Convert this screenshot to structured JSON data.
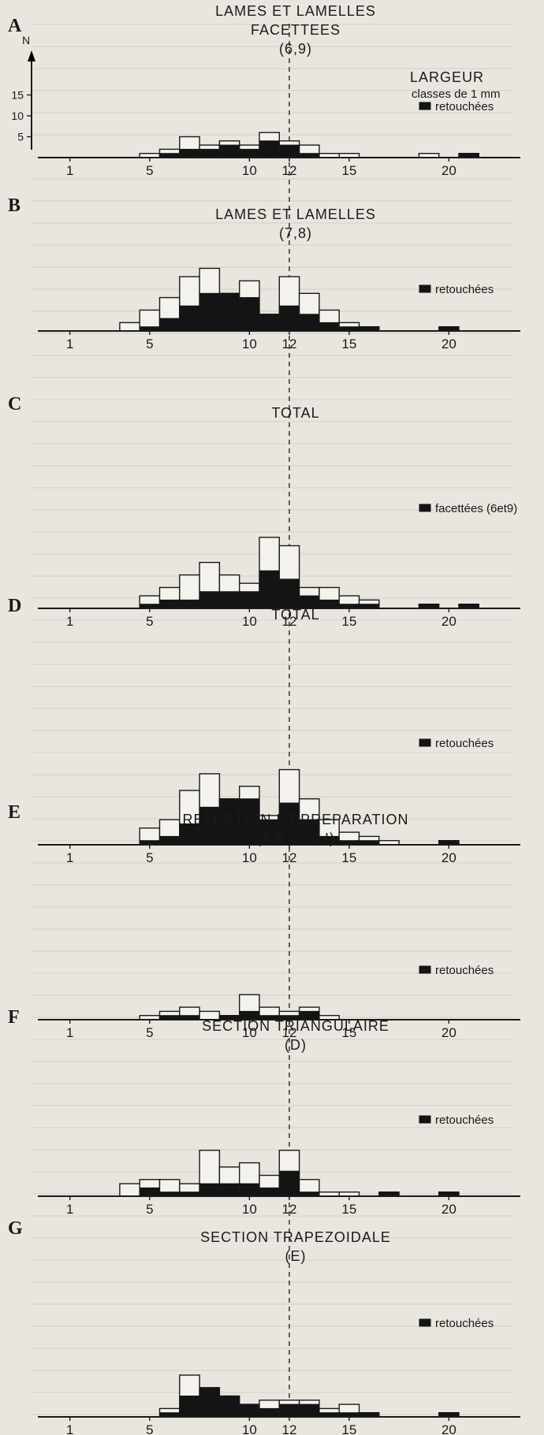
{
  "figure": {
    "y_axis_symbol": "N",
    "y_ticks": [
      "15",
      "10",
      "5"
    ],
    "x_tick_labels": [
      "1",
      "5",
      "10",
      "12",
      "15",
      "20"
    ],
    "top_right_label": [
      "LARGEUR",
      "classes de 1 mm"
    ],
    "reference_width_mm": 12
  },
  "chart_data": [
    {
      "type": "bar",
      "panel": "A",
      "title": [
        "LAMES ET LAMELLES",
        "FACETTEES",
        "(6,9)"
      ],
      "legend": "retouchées",
      "x": [
        5,
        6,
        7,
        8,
        9,
        10,
        11,
        12,
        13,
        14,
        15,
        16,
        17,
        18,
        19,
        20,
        21
      ],
      "total": [
        1,
        2,
        5,
        3,
        4,
        3,
        6,
        4,
        3,
        1,
        1,
        0,
        0,
        0,
        1,
        0,
        1
      ],
      "retouched": [
        0,
        1,
        2,
        2,
        3,
        2,
        4,
        3,
        1,
        0,
        0,
        0,
        0,
        0,
        0,
        0,
        1
      ]
    },
    {
      "type": "bar",
      "panel": "B",
      "title": [
        "LAMES ET LAMELLES",
        "(7,8)"
      ],
      "legend": "retouchées",
      "x": [
        4,
        5,
        6,
        7,
        8,
        9,
        10,
        11,
        12,
        13,
        14,
        15,
        16,
        17,
        18,
        19,
        20,
        21
      ],
      "total": [
        2,
        5,
        8,
        13,
        15,
        9,
        12,
        4,
        13,
        9,
        5,
        2,
        1,
        0,
        0,
        0,
        1,
        0
      ],
      "retouched": [
        0,
        1,
        3,
        6,
        9,
        9,
        8,
        4,
        6,
        4,
        2,
        1,
        1,
        0,
        0,
        0,
        1,
        0
      ]
    },
    {
      "type": "bar",
      "panel": "C",
      "title": [
        "TOTAL"
      ],
      "legend": "facettées (6et9)",
      "x": [
        5,
        6,
        7,
        8,
        9,
        10,
        11,
        12,
        13,
        14,
        15,
        16,
        17,
        18,
        19,
        20,
        21
      ],
      "total": [
        3,
        5,
        8,
        11,
        8,
        6,
        17,
        15,
        5,
        5,
        3,
        2,
        0,
        0,
        1,
        0,
        1
      ],
      "retouched": [
        1,
        2,
        2,
        4,
        4,
        4,
        9,
        7,
        3,
        2,
        1,
        1,
        0,
        0,
        1,
        0,
        1
      ]
    },
    {
      "type": "bar",
      "panel": "D",
      "title": [
        "TOTAL"
      ],
      "legend": "retouchées",
      "x": [
        5,
        6,
        7,
        8,
        9,
        10,
        11,
        12,
        13,
        14,
        15,
        16,
        17,
        18,
        19,
        20,
        21
      ],
      "total": [
        4,
        6,
        13,
        17,
        11,
        14,
        7,
        18,
        11,
        6,
        3,
        2,
        1,
        0,
        0,
        1,
        0
      ],
      "retouched": [
        1,
        2,
        5,
        9,
        11,
        11,
        6,
        10,
        6,
        2,
        1,
        1,
        0,
        0,
        0,
        1,
        0
      ]
    },
    {
      "type": "bar",
      "panel": "E",
      "title": [
        "REFECTION ET PREPARATION",
        "(A B C et I)"
      ],
      "legend": "retouchées",
      "x": [
        5,
        6,
        7,
        8,
        9,
        10,
        11,
        12,
        13,
        14,
        15,
        16,
        17,
        18,
        19,
        20,
        21
      ],
      "total": [
        1,
        2,
        3,
        2,
        1,
        6,
        3,
        2,
        3,
        1,
        0,
        0,
        0,
        0,
        0,
        0,
        0
      ],
      "retouched": [
        0,
        1,
        1,
        0,
        1,
        2,
        1,
        1,
        2,
        0,
        0,
        0,
        0,
        0,
        0,
        0,
        0
      ]
    },
    {
      "type": "bar",
      "panel": "F",
      "title": [
        "SECTION TRIANGULAIRE",
        "(D)"
      ],
      "legend": "retouchées",
      "x": [
        4,
        5,
        6,
        7,
        8,
        9,
        10,
        11,
        12,
        13,
        14,
        15,
        16,
        17,
        18,
        19,
        20,
        21
      ],
      "total": [
        3,
        4,
        4,
        3,
        11,
        7,
        8,
        5,
        11,
        4,
        1,
        1,
        0,
        1,
        0,
        0,
        1,
        0
      ],
      "retouched": [
        0,
        2,
        1,
        1,
        3,
        3,
        3,
        2,
        6,
        1,
        0,
        0,
        0,
        1,
        0,
        0,
        1,
        0
      ]
    },
    {
      "type": "bar",
      "panel": "G",
      "title": [
        "SECTION TRAPEZOIDALE",
        "(E)"
      ],
      "legend": "retouchées",
      "x": [
        6,
        7,
        8,
        9,
        10,
        11,
        12,
        13,
        14,
        15,
        16,
        17,
        18,
        19,
        20,
        21
      ],
      "total": [
        2,
        10,
        7,
        5,
        3,
        4,
        4,
        4,
        2,
        3,
        1,
        0,
        0,
        0,
        1,
        0
      ],
      "retouched": [
        1,
        5,
        7,
        5,
        3,
        2,
        3,
        3,
        1,
        1,
        1,
        0,
        0,
        0,
        1,
        0
      ]
    }
  ]
}
